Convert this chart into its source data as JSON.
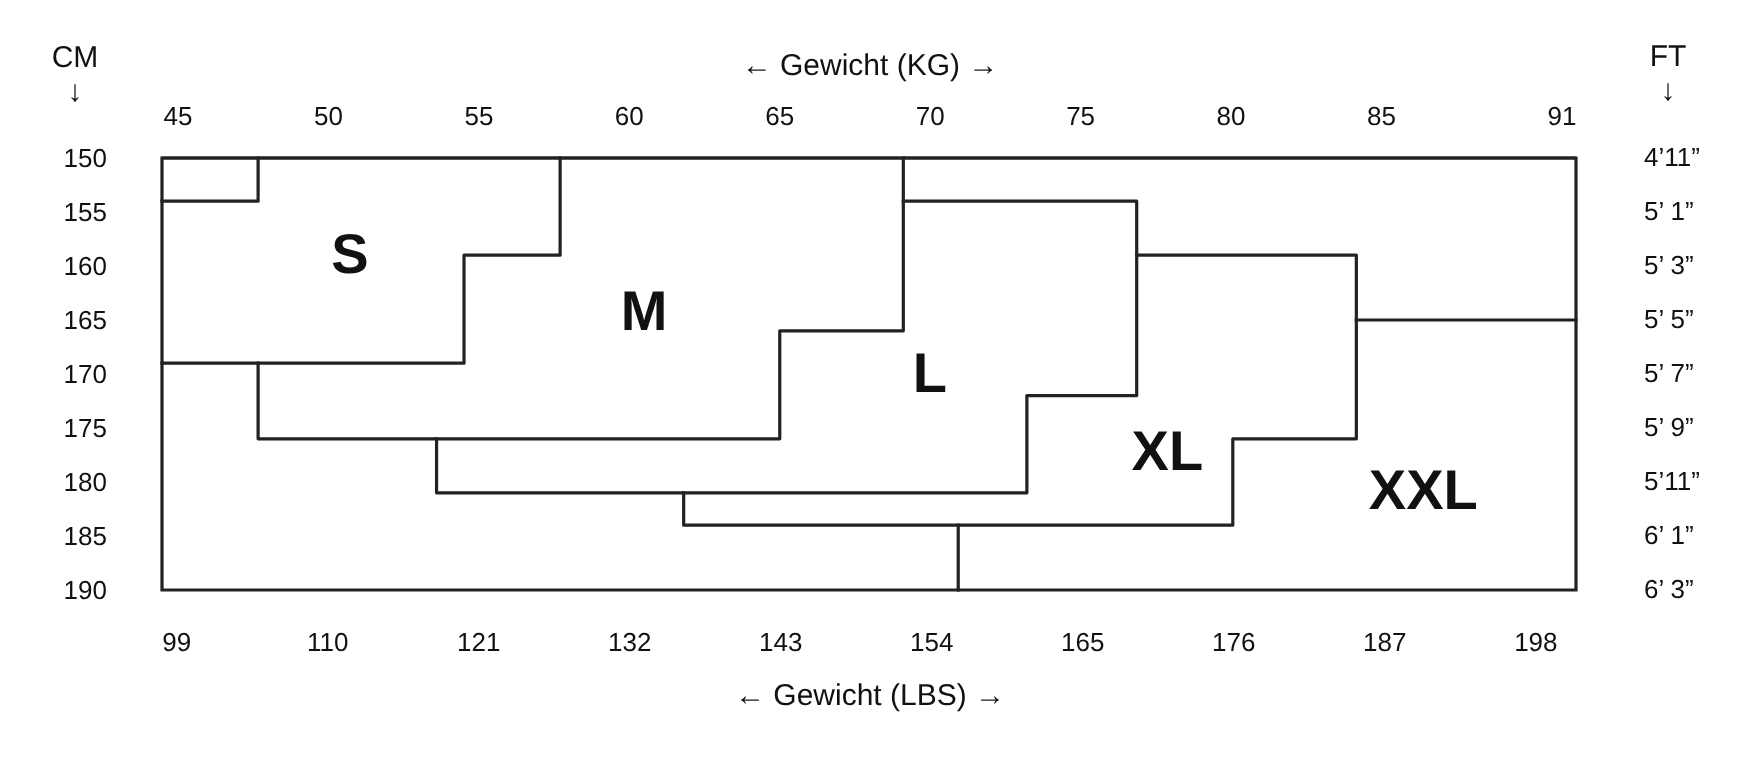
{
  "chart_data": {
    "type": "line",
    "xlabel": "← Gewicht (LBS) →",
    "x2label": "← Gewicht (KG) →",
    "ylabel": "CM ↓",
    "xlim": [
      98,
      201
    ],
    "xticks": [
      99,
      110,
      121,
      132,
      143,
      154,
      165,
      176,
      187,
      198
    ],
    "x2lim": [
      44.5,
      91.5
    ],
    "x2ticks": [
      45,
      50,
      55,
      60,
      65,
      70,
      75,
      80,
      85,
      91
    ],
    "ylim": [
      190,
      150
    ],
    "yticks": [
      150,
      155,
      160,
      165,
      170,
      175,
      180,
      185,
      190
    ],
    "grid": false,
    "legend": false,
    "marker": "none",
    "line_style": "solid",
    "series": [
      {
        "color": "#222222",
        "x": [
          98,
          105,
          105
        ],
        "values": [
          154,
          154,
          150
        ]
      },
      {
        "color": "#222222",
        "x": [
          127,
          127,
          120,
          120,
          98
        ],
        "values": [
          150,
          159,
          159,
          169,
          169
        ]
      },
      {
        "color": "#222222",
        "x": [
          152,
          152,
          143,
          143,
          105,
          105
        ],
        "values": [
          150,
          166,
          166,
          176,
          176,
          169
        ]
      },
      {
        "color": "#222222",
        "x": [
          152,
          169,
          169,
          161,
          161,
          118,
          118
        ],
        "values": [
          154,
          154,
          172,
          172,
          181,
          181,
          176
        ]
      },
      {
        "color": "#222222",
        "x": [
          169,
          185,
          185,
          176,
          176,
          136,
          136
        ],
        "values": [
          159,
          159,
          176,
          176,
          184,
          184,
          181
        ]
      },
      {
        "color": "#222222",
        "x": [
          185,
          201
        ],
        "values": [
          165,
          165
        ]
      },
      {
        "color": "#222222",
        "x": [
          156,
          156
        ],
        "values": [
          184,
          190
        ]
      }
    ],
    "annotations": [
      "S",
      "M",
      "L",
      "XL",
      "XXL",
      "FT ↓",
      "4’11”",
      "5’ 1”",
      "5’ 3”",
      "5’ 5”",
      "5’ 7”",
      "5’ 9”",
      "5’11”",
      "6’ 1”",
      "6’ 3”"
    ]
  }
}
